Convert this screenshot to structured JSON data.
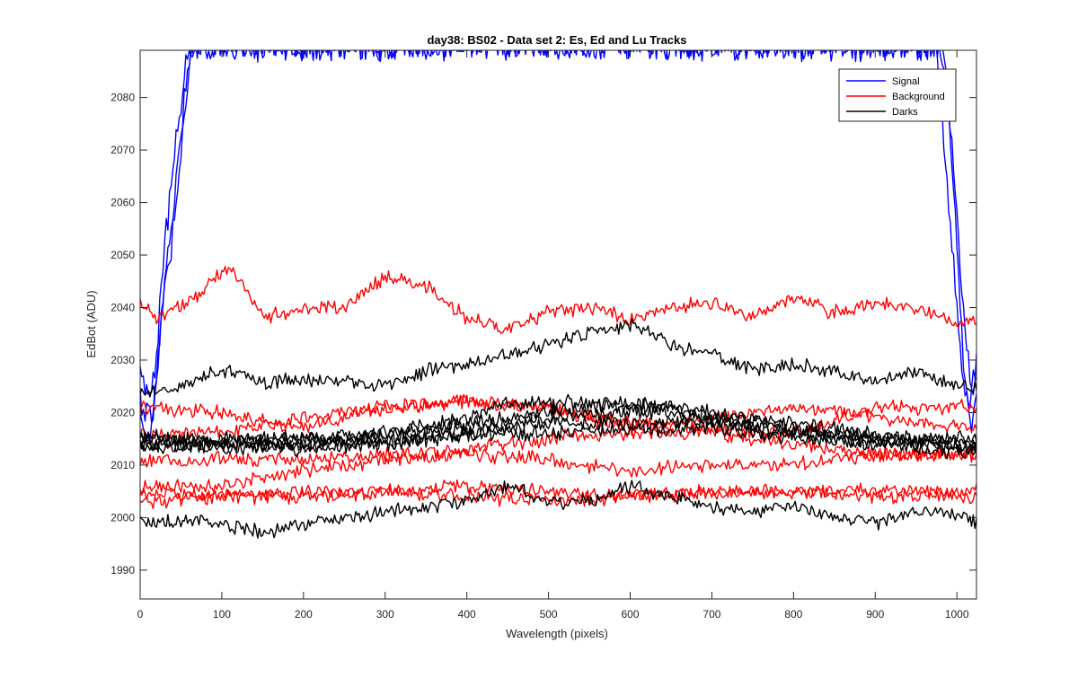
{
  "chart_data": {
    "type": "line",
    "title": "day38: BS02 - Data set 2: Es, Ed and Lu Tracks",
    "xlabel": "Wavelength (pixels)",
    "ylabel": "EdBot (ADU)",
    "xlim": [
      0,
      1024
    ],
    "ylim": [
      1984.5,
      2089
    ],
    "xticks": [
      0,
      100,
      200,
      300,
      400,
      500,
      600,
      700,
      800,
      900,
      1000
    ],
    "yticks": [
      1990,
      2000,
      2010,
      2020,
      2030,
      2040,
      2050,
      2060,
      2070,
      2080
    ],
    "grid": false,
    "legend_position": "top-right",
    "colors": {
      "signal": "#0000ff",
      "background": "#ff0000",
      "darks": "#000000"
    },
    "series": [
      {
        "name": "Signal",
        "color": "#0000ff",
        "points": [
          [
            0,
            2028
          ],
          [
            10,
            2022
          ],
          [
            20,
            2030
          ],
          [
            30,
            2052
          ],
          [
            40,
            2066
          ],
          [
            50,
            2078
          ],
          [
            60,
            2090
          ],
          [
            980,
            2090
          ],
          [
            995,
            2070
          ],
          [
            1005,
            2045
          ],
          [
            1015,
            2028
          ],
          [
            1024,
            2025
          ]
        ]
      },
      {
        "name": "",
        "color": "#0000ff",
        "points": [
          [
            0,
            2018
          ],
          [
            10,
            2014
          ],
          [
            20,
            2026
          ],
          [
            30,
            2045
          ],
          [
            40,
            2058
          ],
          [
            55,
            2082
          ],
          [
            65,
            2090
          ],
          [
            975,
            2090
          ],
          [
            990,
            2060
          ],
          [
            1005,
            2030
          ],
          [
            1015,
            2020
          ],
          [
            1024,
            2030
          ]
        ]
      },
      {
        "name": "",
        "color": "#0000ff",
        "points": [
          [
            0,
            2022
          ],
          [
            15,
            2018
          ],
          [
            25,
            2036
          ],
          [
            38,
            2052
          ],
          [
            50,
            2070
          ],
          [
            62,
            2090
          ],
          [
            985,
            2090
          ],
          [
            998,
            2058
          ],
          [
            1010,
            2025
          ],
          [
            1018,
            2018
          ],
          [
            1024,
            2022
          ]
        ]
      },
      {
        "name": "Background",
        "color": "#ff0000",
        "points": [
          [
            0,
            2041
          ],
          [
            20,
            2038
          ],
          [
            60,
            2041
          ],
          [
            110,
            2048
          ],
          [
            150,
            2038
          ],
          [
            200,
            2040
          ],
          [
            250,
            2040
          ],
          [
            300,
            2046
          ],
          [
            350,
            2044
          ],
          [
            400,
            2038
          ],
          [
            450,
            2036
          ],
          [
            500,
            2039
          ],
          [
            550,
            2040
          ],
          [
            600,
            2038
          ],
          [
            650,
            2040
          ],
          [
            700,
            2041
          ],
          [
            750,
            2038
          ],
          [
            800,
            2042
          ],
          [
            850,
            2039
          ],
          [
            900,
            2041
          ],
          [
            950,
            2040
          ],
          [
            1000,
            2037
          ],
          [
            1024,
            2038
          ]
        ]
      },
      {
        "name": "",
        "color": "#ff0000",
        "points": [
          [
            0,
            2021
          ],
          [
            100,
            2020
          ],
          [
            200,
            2017
          ],
          [
            300,
            2021
          ],
          [
            400,
            2022
          ],
          [
            500,
            2021
          ],
          [
            600,
            2017
          ],
          [
            700,
            2019
          ],
          [
            800,
            2021
          ],
          [
            900,
            2019
          ],
          [
            1024,
            2017
          ]
        ]
      },
      {
        "name": "",
        "color": "#ff0000",
        "points": [
          [
            0,
            2016
          ],
          [
            100,
            2016
          ],
          [
            200,
            2019
          ],
          [
            300,
            2021
          ],
          [
            400,
            2022
          ],
          [
            500,
            2021
          ],
          [
            600,
            2018
          ],
          [
            700,
            2017
          ],
          [
            800,
            2016
          ],
          [
            900,
            2021
          ],
          [
            1024,
            2021
          ]
        ]
      },
      {
        "name": "",
        "color": "#ff0000",
        "points": [
          [
            0,
            2011
          ],
          [
            100,
            2011
          ],
          [
            200,
            2011
          ],
          [
            300,
            2012
          ],
          [
            400,
            2013
          ],
          [
            500,
            2015
          ],
          [
            600,
            2016
          ],
          [
            700,
            2016
          ],
          [
            800,
            2014
          ],
          [
            900,
            2012
          ],
          [
            1024,
            2012
          ]
        ]
      },
      {
        "name": "",
        "color": "#ff0000",
        "points": [
          [
            0,
            2006
          ],
          [
            100,
            2006
          ],
          [
            200,
            2009
          ],
          [
            300,
            2011
          ],
          [
            400,
            2012
          ],
          [
            500,
            2011
          ],
          [
            600,
            2009
          ],
          [
            700,
            2010
          ],
          [
            800,
            2010
          ],
          [
            900,
            2012
          ],
          [
            1024,
            2012
          ]
        ]
      },
      {
        "name": "",
        "color": "#ff0000",
        "points": [
          [
            0,
            2005
          ],
          [
            100,
            2004
          ],
          [
            200,
            2004
          ],
          [
            300,
            2005
          ],
          [
            400,
            2004
          ],
          [
            500,
            2003
          ],
          [
            600,
            2004
          ],
          [
            700,
            2005
          ],
          [
            800,
            2005
          ],
          [
            900,
            2004
          ],
          [
            1024,
            2004
          ]
        ]
      },
      {
        "name": "",
        "color": "#ff0000",
        "points": [
          [
            0,
            2003
          ],
          [
            100,
            2004
          ],
          [
            200,
            2005
          ],
          [
            300,
            2005
          ],
          [
            400,
            2006
          ],
          [
            500,
            2005
          ],
          [
            600,
            2004
          ],
          [
            700,
            2005
          ],
          [
            800,
            2005
          ],
          [
            900,
            2005
          ],
          [
            1024,
            2005
          ]
        ]
      },
      {
        "name": "Darks",
        "color": "#000000",
        "points": [
          [
            0,
            2024
          ],
          [
            50,
            2025
          ],
          [
            100,
            2028
          ],
          [
            150,
            2026
          ],
          [
            200,
            2026
          ],
          [
            250,
            2026
          ],
          [
            300,
            2025
          ],
          [
            350,
            2028
          ],
          [
            400,
            2029
          ],
          [
            450,
            2031
          ],
          [
            500,
            2033
          ],
          [
            550,
            2035
          ],
          [
            600,
            2037
          ],
          [
            650,
            2033
          ],
          [
            700,
            2031
          ],
          [
            750,
            2028
          ],
          [
            800,
            2029
          ],
          [
            850,
            2028
          ],
          [
            900,
            2026
          ],
          [
            950,
            2028
          ],
          [
            1000,
            2025
          ],
          [
            1024,
            2025
          ]
        ]
      },
      {
        "name": "",
        "color": "#000000",
        "points": [
          [
            0,
            2015
          ],
          [
            100,
            2015
          ],
          [
            200,
            2014
          ],
          [
            300,
            2016
          ],
          [
            400,
            2019
          ],
          [
            450,
            2022
          ],
          [
            500,
            2022
          ],
          [
            550,
            2022
          ],
          [
            600,
            2021
          ],
          [
            650,
            2021
          ],
          [
            700,
            2019
          ],
          [
            800,
            2016
          ],
          [
            900,
            2015
          ],
          [
            1024,
            2014
          ]
        ]
      },
      {
        "name": "",
        "color": "#000000",
        "points": [
          [
            0,
            2014
          ],
          [
            100,
            2015
          ],
          [
            200,
            2015
          ],
          [
            300,
            2016
          ],
          [
            400,
            2018
          ],
          [
            500,
            2020
          ],
          [
            600,
            2022
          ],
          [
            700,
            2020
          ],
          [
            800,
            2017
          ],
          [
            900,
            2015
          ],
          [
            1024,
            2015
          ]
        ]
      },
      {
        "name": "",
        "color": "#000000",
        "points": [
          [
            0,
            2013
          ],
          [
            100,
            2014
          ],
          [
            200,
            2015
          ],
          [
            300,
            2015
          ],
          [
            400,
            2017
          ],
          [
            500,
            2019
          ],
          [
            600,
            2020
          ],
          [
            700,
            2019
          ],
          [
            800,
            2018
          ],
          [
            900,
            2016
          ],
          [
            1024,
            2013
          ]
        ]
      },
      {
        "name": "",
        "color": "#000000",
        "points": [
          [
            0,
            2016
          ],
          [
            100,
            2013
          ],
          [
            200,
            2014
          ],
          [
            300,
            2014
          ],
          [
            400,
            2016
          ],
          [
            500,
            2018
          ],
          [
            600,
            2018
          ],
          [
            700,
            2018
          ],
          [
            800,
            2016
          ],
          [
            900,
            2014
          ],
          [
            1024,
            2014
          ]
        ]
      },
      {
        "name": "",
        "color": "#000000",
        "points": [
          [
            0,
            2014
          ],
          [
            100,
            2014
          ],
          [
            200,
            2013
          ],
          [
            300,
            2014
          ],
          [
            400,
            2016
          ],
          [
            500,
            2016
          ],
          [
            600,
            2017
          ],
          [
            700,
            2017
          ],
          [
            800,
            2015
          ],
          [
            900,
            2014
          ],
          [
            1024,
            2012
          ]
        ]
      },
      {
        "name": "",
        "color": "#000000",
        "points": [
          [
            0,
            1999
          ],
          [
            50,
            1999
          ],
          [
            100,
            1999
          ],
          [
            150,
            1997
          ],
          [
            200,
            1999
          ],
          [
            250,
            2000
          ],
          [
            300,
            2001
          ],
          [
            350,
            2002
          ],
          [
            400,
            2003
          ],
          [
            450,
            2006
          ],
          [
            500,
            2003
          ],
          [
            550,
            2003
          ],
          [
            600,
            2006
          ],
          [
            650,
            2004
          ],
          [
            700,
            2002
          ],
          [
            750,
            2001
          ],
          [
            800,
            2002
          ],
          [
            850,
            2000
          ],
          [
            900,
            1999
          ],
          [
            950,
            2001
          ],
          [
            1000,
            2001
          ],
          [
            1024,
            1999
          ]
        ]
      }
    ]
  }
}
